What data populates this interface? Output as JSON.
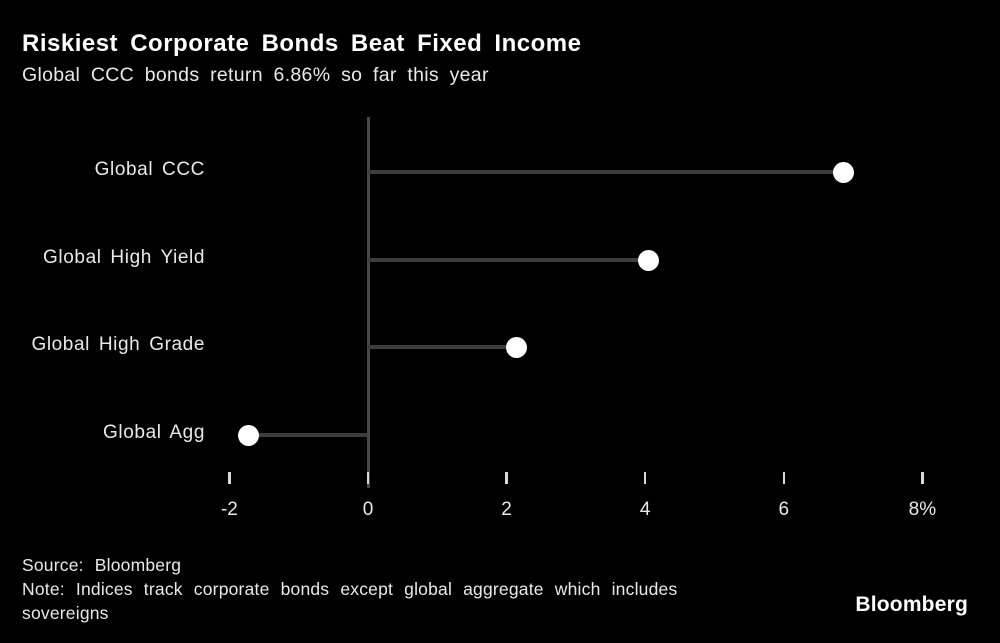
{
  "chart_data": {
    "type": "scatter",
    "variant": "horizontal-lollipop",
    "title": "Riskiest Corporate Bonds Beat Fixed Income",
    "subtitle": "Global CCC bonds return 6.86% so far this year",
    "categories": [
      "Global CCC",
      "Global High Yield",
      "Global High Grade",
      "Global Agg"
    ],
    "values": [
      6.86,
      4.05,
      2.15,
      -1.72
    ],
    "unit": "%",
    "baseline": 0,
    "xlim": [
      -3,
      9.1
    ],
    "x_ticks": [
      {
        "value": -2,
        "label": "-2"
      },
      {
        "value": 0,
        "label": "0"
      },
      {
        "value": 2,
        "label": "2"
      },
      {
        "value": 4,
        "label": "4"
      },
      {
        "value": 6,
        "label": "6"
      },
      {
        "value": 8,
        "label": "8%"
      }
    ],
    "grid": false,
    "legend": false,
    "xlabel": "",
    "ylabel": ""
  },
  "footer": {
    "source": "Source: Bloomberg",
    "note": "Note: Indices track corporate bonds except global aggregate which includes sovereigns",
    "logo": "Bloomberg"
  },
  "colors": {
    "background": "#000000",
    "title_text": "#ffffff",
    "body_text": "#e9e9e9",
    "line": "#3d3d3d",
    "axis": "#484848",
    "tick": "#d9d9d9",
    "dot": "#ffffff"
  }
}
